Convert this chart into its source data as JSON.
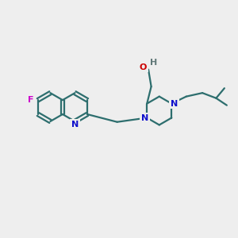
{
  "bg": "#eeeeee",
  "bond_color": "#2d6e6e",
  "bw": 1.6,
  "atom_colors": {
    "N": "#1010cc",
    "O": "#cc0000",
    "F": "#cc00cc",
    "H": "#607878"
  },
  "fs": 8.0,
  "xlim": [
    0,
    10
  ],
  "ylim": [
    0,
    10
  ]
}
